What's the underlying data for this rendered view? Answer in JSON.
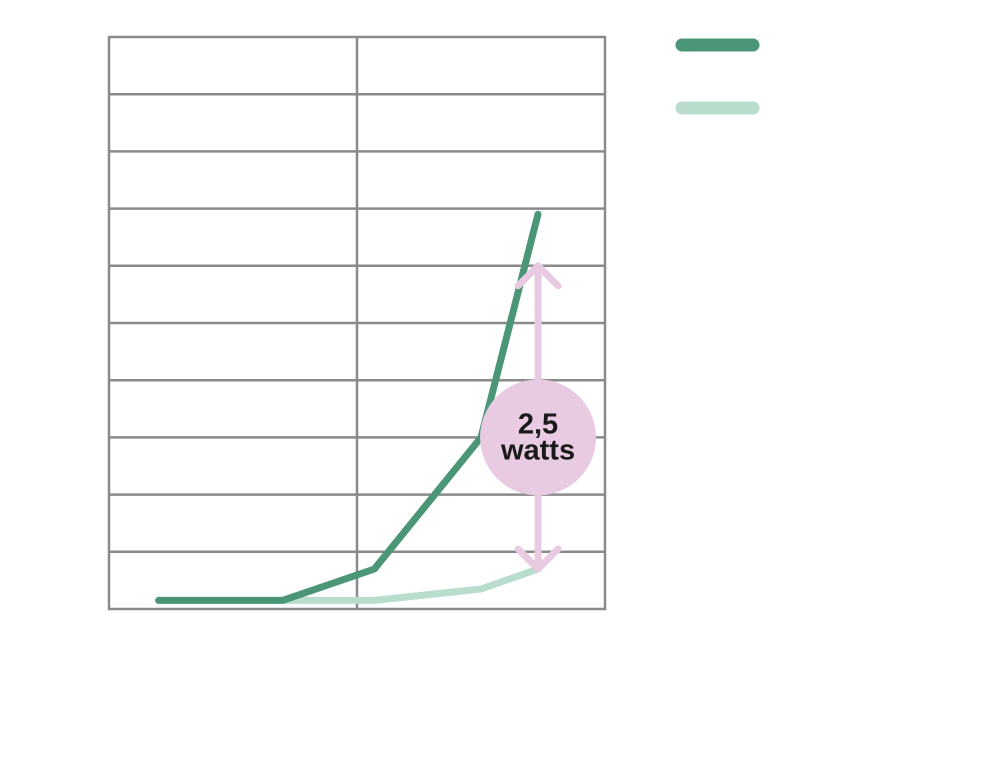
{
  "chart_data": {
    "type": "line",
    "title": "",
    "xlabel": "",
    "ylabel": "",
    "xlim": [
      0,
      2
    ],
    "ylim": [
      0,
      10
    ],
    "grid": true,
    "legend_position": "top-right",
    "x": [
      0.2,
      0.7,
      1.07,
      1.5,
      1.73
    ],
    "series": [
      {
        "name": "",
        "color": "#4a9676",
        "values": [
          0.15,
          0.15,
          0.7,
          3.0,
          6.9
        ]
      },
      {
        "name": "",
        "color": "#b9ddcd",
        "values": [
          0.15,
          0.15,
          0.15,
          0.35,
          0.7
        ]
      }
    ],
    "annotation": {
      "value_line": "2,5",
      "unit_line": "watts",
      "x": 1.73,
      "y_from": 0.7,
      "y_to": 6.0,
      "label_y": 3.0,
      "color": "#e8cbe3"
    }
  }
}
